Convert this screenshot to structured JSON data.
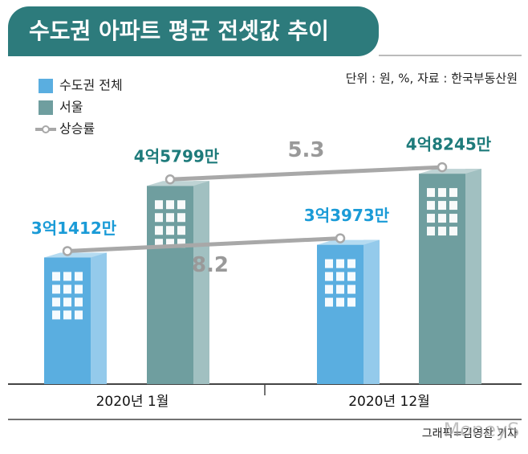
{
  "chart_data": {
    "type": "bar",
    "title": "수도권 아파트 평균 전셋값 추이",
    "note": "단위 : 원, %, 자료 : 한국부동산원",
    "categories": [
      "2020년 1월",
      "2020년 12월"
    ],
    "series": [
      {
        "name": "수도권 전체",
        "color": "#5aaee0",
        "values": [
          314120000,
          339730000
        ],
        "value_labels": [
          "3억1412만",
          "3억3973만"
        ],
        "label_color": "#1a9bd7"
      },
      {
        "name": "서울",
        "color": "#6f9e9f",
        "values": [
          457990000,
          482450000
        ],
        "value_labels": [
          "4억5799만",
          "4억8245만"
        ],
        "label_color": "#1e7b7b"
      }
    ],
    "growth": {
      "name": "상승률",
      "color": "#a8a8a8",
      "values": [
        8.2,
        5.3
      ]
    },
    "credit": "그래픽=김영찬 기자",
    "watermark": "MoneyS"
  }
}
